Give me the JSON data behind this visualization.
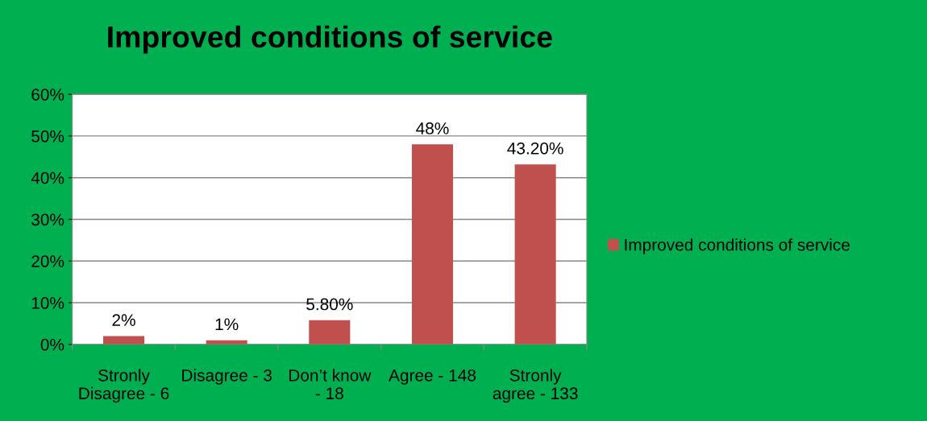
{
  "chart_data": {
    "type": "bar",
    "title": "Improved conditions of service",
    "categories": [
      "Stronly\nDisagree - 6",
      "Disagree - 3",
      "Don’t know\n- 18",
      "Agree - 148",
      "Stronly\nagree - 133"
    ],
    "series": [
      {
        "name": "Improved conditions of service",
        "color": "#c0504d",
        "values": [
          2,
          1,
          5.8,
          48,
          43.2
        ],
        "value_labels": [
          "2%",
          "1%",
          "5.80%",
          "48%",
          "43.20%"
        ]
      }
    ],
    "ylim": [
      0,
      60
    ],
    "yticks": [
      {
        "value": 0,
        "label": "0%"
      },
      {
        "value": 10,
        "label": "10%"
      },
      {
        "value": 20,
        "label": "20%"
      },
      {
        "value": 30,
        "label": "30%"
      },
      {
        "value": 40,
        "label": "40%"
      },
      {
        "value": 50,
        "label": "50%"
      },
      {
        "value": 60,
        "label": "60%"
      }
    ],
    "grid": "y",
    "legend": "right"
  }
}
